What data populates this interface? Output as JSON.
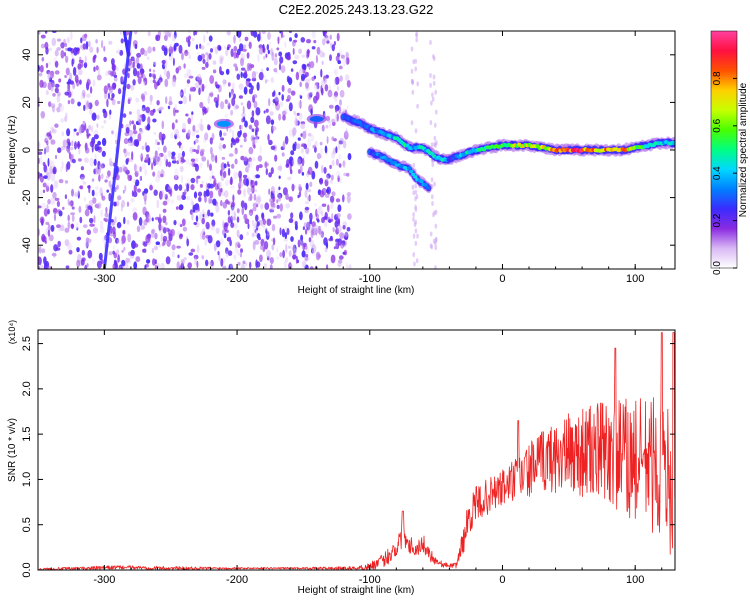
{
  "title": "C2E2.2025.243.13.23.G22",
  "chart_data": [
    {
      "type": "heatmap",
      "name": "spectrogram",
      "xlabel": "Height of straight line (km)",
      "ylabel": "Frequency (Hz)",
      "xlim": [
        -350,
        130
      ],
      "ylim": [
        -50,
        50
      ],
      "xticks": [
        -300,
        -200,
        -100,
        0,
        100
      ],
      "yticks": [
        -40,
        -20,
        0,
        20,
        40
      ],
      "colorbar": {
        "label": "Normalized spectral amplitude",
        "range": [
          0.0,
          1.0
        ],
        "ticks": [
          0.0,
          0.2,
          0.4,
          0.6,
          0.8
        ],
        "tick_labels": [
          "0.0",
          "0.2",
          "0.4",
          "0.6",
          "0.8"
        ],
        "stops": [
          "#ffffff",
          "#d9b8f5",
          "#8a2be2",
          "#3a2cff",
          "#0080ff",
          "#00d8ff",
          "#00ff80",
          "#4aff00",
          "#c8ff00",
          "#ffd000",
          "#ff5000",
          "#ff1040",
          "#ff40a0"
        ]
      },
      "ridge": {
        "x": [
          -120,
          -110,
          -100,
          -90,
          -80,
          -75,
          -70,
          -60,
          -50,
          -45,
          -40,
          -30,
          -20,
          -10,
          0,
          10,
          20,
          30,
          40,
          50,
          60,
          70,
          80,
          90,
          100,
          110,
          120,
          130
        ],
        "freq": [
          14,
          12,
          9,
          7,
          5,
          3,
          1,
          1,
          -3,
          -4,
          -4,
          -2,
          0,
          1,
          2,
          2,
          2,
          1,
          0,
          0,
          0,
          0,
          0,
          0,
          1,
          2,
          3,
          3
        ],
        "amp": [
          0.3,
          0.3,
          0.35,
          0.4,
          0.45,
          0.55,
          0.4,
          0.45,
          0.45,
          0.45,
          0.3,
          0.45,
          0.5,
          0.55,
          0.6,
          0.7,
          0.7,
          0.7,
          0.8,
          0.9,
          0.9,
          0.85,
          0.8,
          0.85,
          0.6,
          0.5,
          0.45,
          0.45
        ]
      },
      "side_branch": {
        "x": [
          -100,
          -90,
          -80,
          -70,
          -65,
          -60,
          -55
        ],
        "freq": [
          -1,
          -3,
          -6,
          -8,
          -12,
          -14,
          -16
        ],
        "amp": [
          0.3,
          0.35,
          0.35,
          0.4,
          0.4,
          0.35,
          0.3
        ]
      },
      "blobs": [
        {
          "x": -210,
          "freq": 11,
          "amp": 0.35
        },
        {
          "x": -140,
          "freq": 13,
          "amp": 0.3
        }
      ],
      "diagonal_streak": {
        "x": [
          -300,
          -280
        ],
        "freq": [
          -50,
          50
        ],
        "amp": 0.25
      },
      "noise_region": {
        "xlim": [
          -350,
          -115
        ],
        "amp": 0.15
      }
    },
    {
      "type": "line",
      "name": "snr",
      "xlabel": "Height of straight line (km)",
      "ylabel": "SNR (10 * v/v)",
      "exponent": "(x10⁴)",
      "xlim": [
        -350,
        130
      ],
      "ylim": [
        0,
        2.65
      ],
      "xticks": [
        -300,
        -200,
        -100,
        0,
        100
      ],
      "yticks": [
        0.0,
        0.5,
        1.0,
        1.5,
        2.0,
        2.5
      ],
      "ytick_labels": [
        "0.0",
        "0.5",
        "1.0",
        "1.5",
        "2.0",
        "2.5"
      ],
      "color": "#ee2222",
      "envelope": {
        "x": [
          -350,
          -310,
          -290,
          -250,
          -200,
          -150,
          -110,
          -100,
          -90,
          -80,
          -75,
          -70,
          -65,
          -60,
          -55,
          -50,
          -45,
          -40,
          -35,
          -30,
          -25,
          -20,
          -10,
          0,
          10,
          20,
          30,
          40,
          50,
          60,
          70,
          80,
          90,
          100,
          110,
          120,
          130
        ],
        "baseline": [
          0.01,
          0.02,
          0.03,
          0.02,
          0.02,
          0.02,
          0.02,
          0.04,
          0.1,
          0.25,
          0.4,
          0.3,
          0.22,
          0.3,
          0.18,
          0.1,
          0.06,
          0.05,
          0.05,
          0.3,
          0.6,
          0.72,
          0.82,
          0.9,
          1.0,
          1.1,
          1.2,
          1.25,
          1.28,
          1.3,
          1.3,
          1.3,
          1.25,
          1.2,
          1.2,
          1.1,
          0.9
        ],
        "spread": [
          0.01,
          0.02,
          0.02,
          0.02,
          0.01,
          0.01,
          0.02,
          0.04,
          0.08,
          0.12,
          0.15,
          0.12,
          0.08,
          0.1,
          0.08,
          0.05,
          0.03,
          0.02,
          0.03,
          0.15,
          0.2,
          0.2,
          0.2,
          0.22,
          0.25,
          0.3,
          0.35,
          0.4,
          0.45,
          0.5,
          0.55,
          0.6,
          0.65,
          0.7,
          0.75,
          0.8,
          0.8
        ]
      },
      "peaks": [
        {
          "x": -75,
          "y": 0.65
        },
        {
          "x": 12,
          "y": 1.65
        },
        {
          "x": 85,
          "y": 2.45
        },
        {
          "x": 120,
          "y": 2.62
        },
        {
          "x": 129,
          "y": 2.62
        }
      ]
    }
  ]
}
